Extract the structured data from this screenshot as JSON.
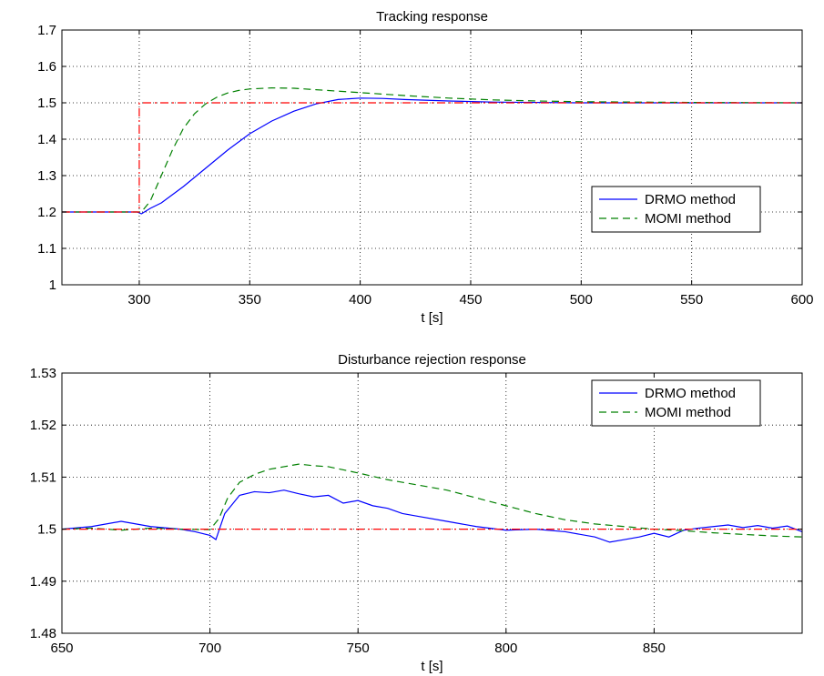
{
  "chart_data": [
    {
      "type": "line",
      "title": "Tracking response",
      "xlabel": "t [s]",
      "ylabel": "",
      "xlim": [
        265,
        600
      ],
      "ylim": [
        1.0,
        1.7
      ],
      "xticks": [
        300,
        350,
        400,
        450,
        500,
        550,
        600
      ],
      "yticks": [
        1,
        1.1,
        1.2,
        1.3,
        1.4,
        1.5,
        1.6,
        1.7
      ],
      "xtick_labels": [
        "300",
        "350",
        "400",
        "450",
        "500",
        "550",
        "600"
      ],
      "ytick_labels": [
        "1",
        "1.1",
        "1.2",
        "1.3",
        "1.4",
        "1.5",
        "1.6",
        "1.7"
      ],
      "grid": true,
      "legend_position": "center-right",
      "series": [
        {
          "name": "DRMO method",
          "color": "#0000ff",
          "style": "solid",
          "x": [
            265,
            299,
            301,
            305,
            310,
            320,
            330,
            340,
            350,
            360,
            370,
            380,
            390,
            400,
            410,
            420,
            440,
            460,
            500,
            550,
            600
          ],
          "y": [
            1.2,
            1.2,
            1.195,
            1.21,
            1.225,
            1.27,
            1.32,
            1.37,
            1.415,
            1.45,
            1.477,
            1.497,
            1.509,
            1.513,
            1.512,
            1.509,
            1.505,
            1.502,
            1.5,
            1.5,
            1.5
          ]
        },
        {
          "name": "MOMI method",
          "color": "#008000",
          "style": "dashed",
          "x": [
            265,
            299,
            301,
            305,
            310,
            315,
            320,
            325,
            330,
            335,
            340,
            345,
            350,
            360,
            370,
            380,
            400,
            420,
            440,
            460,
            480,
            500,
            550,
            600
          ],
          "y": [
            1.2,
            1.2,
            1.2,
            1.23,
            1.3,
            1.37,
            1.43,
            1.47,
            1.497,
            1.515,
            1.527,
            1.534,
            1.538,
            1.541,
            1.54,
            1.536,
            1.528,
            1.52,
            1.513,
            1.508,
            1.505,
            1.503,
            1.501,
            1.5
          ]
        },
        {
          "name": "",
          "color": "#ff0000",
          "style": "dashdot",
          "x": [
            265,
            300,
            300,
            600
          ],
          "y": [
            1.2,
            1.2,
            1.5,
            1.5
          ]
        }
      ]
    },
    {
      "type": "line",
      "title": "Disturbance rejection response",
      "xlabel": "t [s]",
      "ylabel": "",
      "xlim": [
        650,
        900
      ],
      "ylim": [
        1.48,
        1.53
      ],
      "xticks": [
        650,
        700,
        750,
        800,
        850
      ],
      "yticks": [
        1.48,
        1.49,
        1.5,
        1.51,
        1.52,
        1.53
      ],
      "xtick_labels": [
        "650",
        "700",
        "750",
        "800",
        "850"
      ],
      "ytick_labels": [
        "1.48",
        "1.49",
        "1.5",
        "1.51",
        "1.52",
        "1.53"
      ],
      "grid": true,
      "legend_position": "top-right",
      "series": [
        {
          "name": "DRMO method",
          "color": "#0000ff",
          "style": "solid",
          "x": [
            650,
            660,
            670,
            675,
            680,
            690,
            695,
            700,
            702,
            705,
            710,
            715,
            720,
            725,
            730,
            735,
            740,
            745,
            750,
            755,
            760,
            765,
            770,
            780,
            790,
            800,
            810,
            820,
            830,
            835,
            840,
            845,
            850,
            855,
            860,
            865,
            870,
            875,
            880,
            885,
            890,
            895,
            900
          ],
          "y": [
            1.5,
            1.5005,
            1.5015,
            1.501,
            1.5005,
            1.5,
            1.4995,
            1.4988,
            1.498,
            1.503,
            1.5065,
            1.5072,
            1.507,
            1.5075,
            1.5068,
            1.5062,
            1.5065,
            1.505,
            1.5055,
            1.5045,
            1.504,
            1.503,
            1.5025,
            1.5015,
            1.5005,
            1.4998,
            1.5,
            1.4995,
            1.4985,
            1.4975,
            1.498,
            1.4985,
            1.4992,
            1.4985,
            1.4998,
            1.5002,
            1.5005,
            1.5008,
            1.5003,
            1.5007,
            1.5002,
            1.5006,
            1.4995
          ]
        },
        {
          "name": "MOMI method",
          "color": "#008000",
          "style": "dashed",
          "x": [
            650,
            660,
            670,
            680,
            690,
            700,
            703,
            706,
            710,
            715,
            720,
            725,
            730,
            735,
            740,
            750,
            760,
            770,
            780,
            790,
            800,
            810,
            820,
            830,
            840,
            850,
            860,
            870,
            880,
            890,
            900
          ],
          "y": [
            1.5,
            1.5002,
            1.4998,
            1.5002,
            1.5,
            1.4999,
            1.502,
            1.506,
            1.509,
            1.5105,
            1.5115,
            1.512,
            1.5125,
            1.5122,
            1.512,
            1.5108,
            1.5095,
            1.5085,
            1.5075,
            1.506,
            1.5045,
            1.503,
            1.5018,
            1.501,
            1.5005,
            1.5,
            1.4997,
            1.4993,
            1.499,
            1.4987,
            1.4985
          ]
        },
        {
          "name": "",
          "color": "#ff0000",
          "style": "dashdot",
          "x": [
            650,
            900
          ],
          "y": [
            1.5,
            1.5
          ]
        }
      ]
    }
  ]
}
